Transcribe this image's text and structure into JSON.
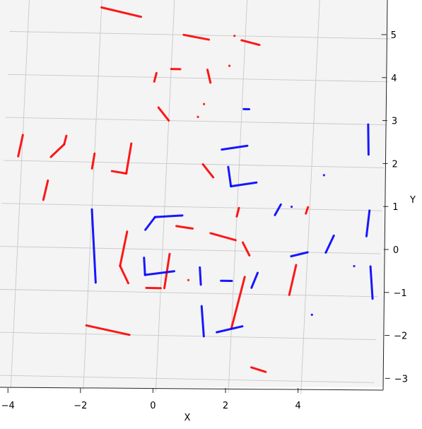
{
  "chart_data": {
    "type": "scatter",
    "title": "",
    "xlabel": "X",
    "ylabel": "Y",
    "xlim": [
      -4.5,
      6.0
    ],
    "ylim": [
      -3.3,
      5.9
    ],
    "grid": true,
    "x_ticks": [
      -4,
      -2,
      0,
      2,
      4
    ],
    "y_ticks": [
      -3,
      -2,
      -1,
      0,
      1,
      2,
      3,
      4,
      5
    ],
    "colors": {
      "red": "#ff0000",
      "blue": "#0000ff",
      "pane": "#f4f4f4",
      "grid": "#c8c8c8"
    },
    "series": [
      {
        "color": "red",
        "segments": [
          [
            [
              -2.0,
              5.6
            ],
            [
              -0.9,
              5.4
            ]
          ],
          [
            [
              0.3,
              5.0
            ],
            [
              1.0,
              4.9
            ]
          ],
          [
            [
              1.9,
              4.9
            ],
            [
              2.4,
              4.8
            ]
          ],
          [
            [
              0.0,
              4.2
            ],
            [
              0.25,
              4.2
            ]
          ],
          [
            [
              1.0,
              4.2
            ],
            [
              1.1,
              3.9
            ]
          ],
          [
            [
              -0.3,
              3.3
            ],
            [
              0.0,
              3.0
            ]
          ],
          [
            [
              -4.0,
              2.6
            ],
            [
              -4.1,
              2.1
            ]
          ],
          [
            [
              -3.2,
              2.1
            ],
            [
              -2.85,
              2.4
            ]
          ],
          [
            [
              -2.85,
              2.4
            ],
            [
              -2.8,
              2.6
            ]
          ],
          [
            [
              -2.0,
              2.2
            ],
            [
              -2.05,
              1.85
            ]
          ],
          [
            [
              -1.5,
              1.8
            ],
            [
              -1.1,
              1.75
            ]
          ],
          [
            [
              -1.1,
              1.75
            ],
            [
              -1.0,
              2.45
            ]
          ],
          [
            [
              1.0,
              2.0
            ],
            [
              1.3,
              1.7
            ]
          ],
          [
            [
              -3.25,
              1.55
            ],
            [
              -3.35,
              1.1
            ]
          ],
          [
            [
              2.05,
              1.0
            ],
            [
              2.0,
              0.8
            ]
          ],
          [
            [
              3.95,
              1.05
            ],
            [
              3.9,
              0.9
            ]
          ],
          [
            [
              0.35,
              0.55
            ],
            [
              0.8,
              0.5
            ]
          ],
          [
            [
              1.3,
              0.4
            ],
            [
              2.0,
              0.25
            ]
          ],
          [
            [
              2.2,
              0.2
            ],
            [
              2.4,
              -0.1
            ]
          ],
          [
            [
              -1.0,
              0.4
            ],
            [
              -1.15,
              -0.4
            ]
          ],
          [
            [
              -1.15,
              -0.4
            ],
            [
              -0.9,
              -0.8
            ]
          ],
          [
            [
              0.2,
              -0.1
            ],
            [
              0.1,
              -0.9
            ]
          ],
          [
            [
              -0.4,
              -0.9
            ],
            [
              0.0,
              -0.9
            ]
          ],
          [
            [
              0.75,
              -0.7
            ],
            [
              0.7,
              -0.7
            ]
          ],
          [
            [
              3.7,
              -0.3
            ],
            [
              3.55,
              -1.0
            ]
          ],
          [
            [
              2.3,
              -0.6
            ],
            [
              2.0,
              -1.8
            ]
          ],
          [
            [
              -2.0,
              -1.8
            ],
            [
              -0.8,
              -2.0
            ]
          ],
          [
            [
              2.6,
              -2.7
            ],
            [
              3.0,
              -2.8
            ]
          ],
          [
            [
              1.7,
              5.0
            ],
            [
              1.8,
              5.0
            ]
          ],
          [
            [
              -0.4,
              4.1
            ],
            [
              -0.45,
              3.9
            ]
          ],
          [
            [
              0.95,
              3.4
            ],
            [
              0.95,
              3.5
            ]
          ],
          [
            [
              0.8,
              3.1
            ],
            [
              0.8,
              3.2
            ]
          ],
          [
            [
              1.6,
              4.3
            ],
            [
              1.6,
              4.4
            ]
          ]
        ]
      },
      {
        "color": "blue",
        "segments": [
          [
            [
              2.05,
              3.3
            ],
            [
              2.2,
              3.3
            ]
          ],
          [
            [
              1.5,
              2.35
            ],
            [
              2.2,
              2.45
            ]
          ],
          [
            [
              1.7,
              1.95
            ],
            [
              1.8,
              1.5
            ]
          ],
          [
            [
              1.8,
              1.5
            ],
            [
              2.5,
              1.6
            ]
          ],
          [
            [
              3.05,
              0.85
            ],
            [
              3.2,
              1.1
            ]
          ],
          [
            [
              4.35,
              1.8
            ],
            [
              4.4,
              1.7
            ]
          ],
          [
            [
              5.5,
              3.0
            ],
            [
              5.55,
              2.3
            ]
          ],
          [
            [
              5.65,
              1.0
            ],
            [
              5.6,
              0.4
            ]
          ],
          [
            [
              -0.5,
              0.45
            ],
            [
              -0.25,
              0.75
            ]
          ],
          [
            [
              -0.25,
              0.75
            ],
            [
              0.5,
              0.8
            ]
          ],
          [
            [
              -2.0,
              0.9
            ],
            [
              -1.8,
              -0.8
            ]
          ],
          [
            [
              -0.5,
              -0.2
            ],
            [
              -0.45,
              -0.6
            ]
          ],
          [
            [
              -0.45,
              -0.6
            ],
            [
              0.35,
              -0.5
            ]
          ],
          [
            [
              1.05,
              -0.4
            ],
            [
              1.1,
              -0.8
            ]
          ],
          [
            [
              1.65,
              -0.7
            ],
            [
              1.95,
              -0.7
            ]
          ],
          [
            [
              2.65,
              -0.5
            ],
            [
              2.5,
              -0.85
            ]
          ],
          [
            [
              1.15,
              -1.3
            ],
            [
              1.25,
              -2.0
            ]
          ],
          [
            [
              1.6,
              -1.9
            ],
            [
              2.3,
              -1.75
            ]
          ],
          [
            [
              3.55,
              -0.1
            ],
            [
              4.0,
              0.0
            ]
          ],
          [
            [
              4.5,
              0.0
            ],
            [
              4.7,
              0.4
            ]
          ],
          [
            [
              5.75,
              -0.3
            ],
            [
              5.85,
              -1.05
            ]
          ],
          [
            [
              4.2,
              -1.45
            ],
            [
              4.2,
              -1.55
            ]
          ],
          [
            [
              5.3,
              -0.3
            ],
            [
              5.3,
              -0.3
            ]
          ],
          [
            [
              3.5,
              1.05
            ],
            [
              3.55,
              1.1
            ]
          ]
        ]
      }
    ]
  }
}
